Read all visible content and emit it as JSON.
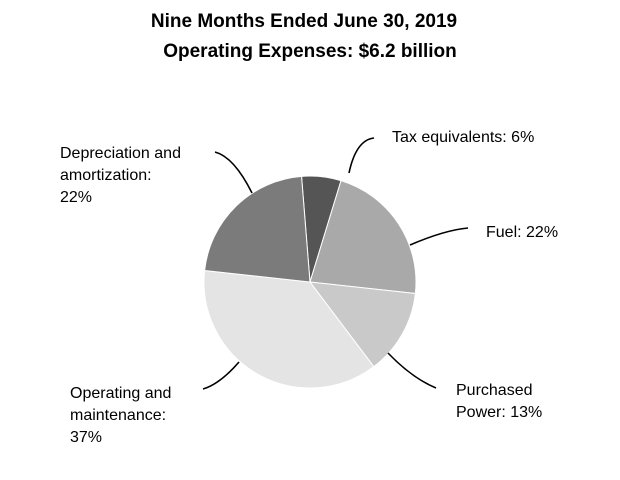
{
  "chart_data": {
    "type": "pie",
    "title": "Nine Months Ended June 30, 2019",
    "subtitle": "Operating Expenses: $6.2 billion",
    "slices": [
      {
        "label": "Tax equivalents: 6%",
        "value": 6,
        "color": "#555555"
      },
      {
        "label": "Fuel: 22%",
        "value": 22,
        "color": "#a9a9a9"
      },
      {
        "label": "Purchased Power: 13%",
        "value": 13,
        "color": "#c9c9c9"
      },
      {
        "label": "Operating and maintenance: 37%",
        "value": 37,
        "color": "#e4e4e4"
      },
      {
        "label": "Depreciation and amortization: 22%",
        "value": 22,
        "color": "#7b7b7b"
      }
    ]
  },
  "labels": {
    "tax_1": "Tax equivalents: 6%",
    "fuel_1": "Fuel: 22%",
    "pp_1": "Purchased",
    "pp_2": "Power: 13%",
    "op_1": "Operating and",
    "op_2": "maintenance:",
    "op_3": "37%",
    "dep_1": "Depreciation and",
    "dep_2": "amortization:",
    "dep_3": "22%"
  }
}
